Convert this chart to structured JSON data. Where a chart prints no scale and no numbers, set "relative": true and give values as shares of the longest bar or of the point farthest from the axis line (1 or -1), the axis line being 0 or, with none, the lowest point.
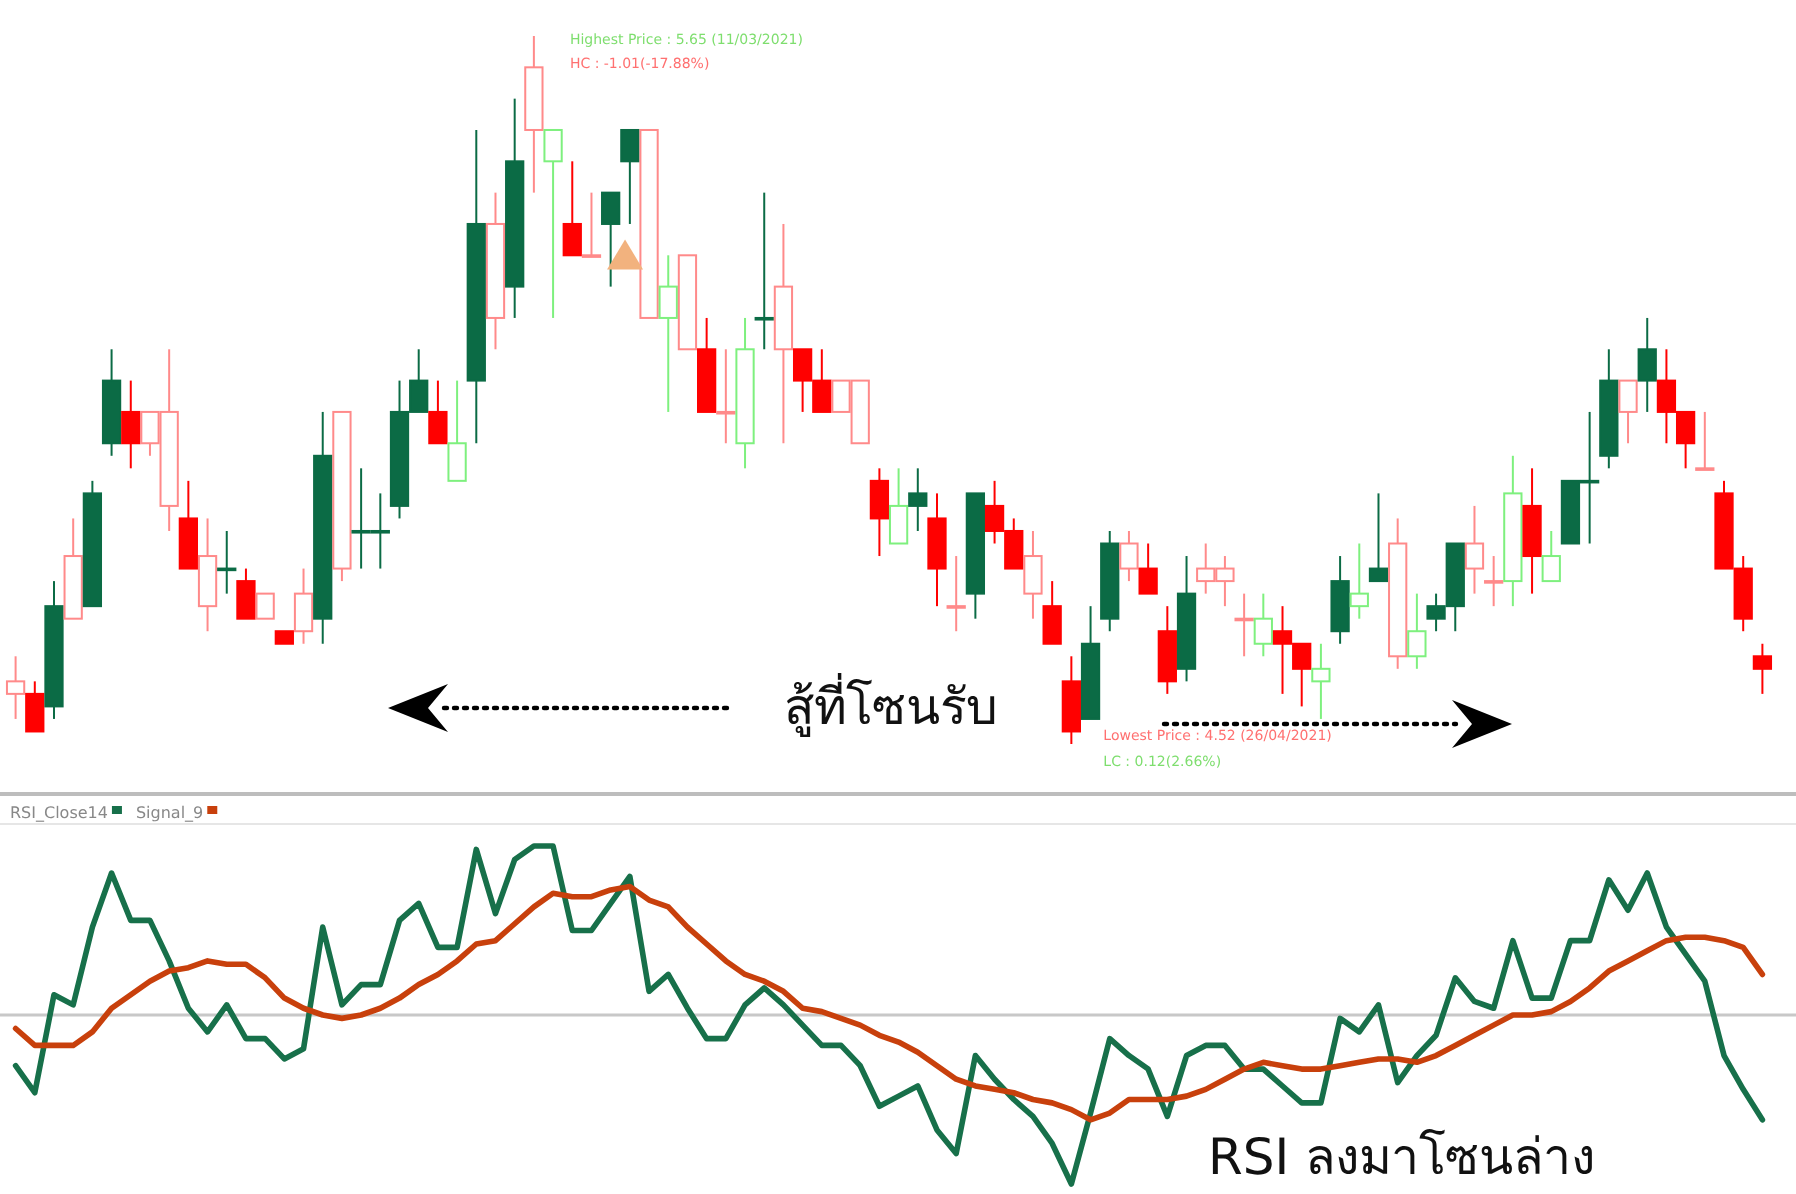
{
  "chart_data": [
    {
      "type": "candlestick",
      "categories": [
        null,
        null,
        null,
        null,
        null,
        null,
        null,
        null,
        null,
        null,
        null,
        null,
        null,
        null,
        null,
        null,
        null,
        null,
        null,
        null,
        null,
        null,
        null,
        null,
        null,
        null,
        null,
        null,
        null,
        null,
        null,
        null,
        null,
        null,
        null,
        null,
        null,
        null,
        null,
        null,
        null,
        null,
        null,
        null,
        null,
        null,
        null,
        null,
        null,
        null,
        null,
        null,
        null,
        null,
        null,
        null,
        null,
        null,
        null,
        null,
        null,
        null,
        null,
        null,
        null,
        null,
        null,
        null,
        null,
        null,
        null,
        null,
        null,
        null,
        null,
        null,
        null,
        null,
        null,
        null,
        null,
        null,
        null,
        null,
        null,
        null,
        null,
        null,
        null,
        null,
        null,
        null
      ],
      "ohlc": [
        [
          4.6,
          4.66,
          4.56,
          4.62
        ],
        [
          4.6,
          4.62,
          4.54,
          4.54
        ],
        [
          4.74,
          4.78,
          4.56,
          4.58
        ],
        [
          4.72,
          4.88,
          4.72,
          4.82
        ],
        [
          4.92,
          4.94,
          4.74,
          4.74
        ],
        [
          5.1,
          5.15,
          4.98,
          5.0
        ],
        [
          5.05,
          5.1,
          4.96,
          5.0
        ],
        [
          5.0,
          5.05,
          4.98,
          5.05
        ],
        [
          4.9,
          5.15,
          4.86,
          5.05
        ],
        [
          4.88,
          4.94,
          4.8,
          4.8
        ],
        [
          4.74,
          4.88,
          4.7,
          4.82
        ],
        [
          4.8,
          4.86,
          4.76,
          4.8
        ],
        [
          4.78,
          4.8,
          4.72,
          4.72
        ],
        [
          4.72,
          4.76,
          4.72,
          4.76
        ],
        [
          4.7,
          4.7,
          4.68,
          4.68
        ],
        [
          4.7,
          4.8,
          4.68,
          4.76
        ],
        [
          4.98,
          5.05,
          4.68,
          4.72
        ],
        [
          4.8,
          5.05,
          4.78,
          5.05
        ],
        [
          4.86,
          4.96,
          4.8,
          4.86
        ],
        [
          4.86,
          4.92,
          4.8,
          4.86
        ],
        [
          5.05,
          5.1,
          4.88,
          4.9
        ],
        [
          5.1,
          5.15,
          5.05,
          5.05
        ],
        [
          5.05,
          5.1,
          5.0,
          5.0
        ],
        [
          4.94,
          5.1,
          4.94,
          5.0
        ],
        [
          5.35,
          5.5,
          5.0,
          5.1
        ],
        [
          5.2,
          5.4,
          5.15,
          5.35
        ],
        [
          5.45,
          5.55,
          5.2,
          5.25
        ],
        [
          5.5,
          5.65,
          5.4,
          5.6
        ],
        [
          5.45,
          5.5,
          5.2,
          5.5
        ],
        [
          5.35,
          5.45,
          5.3,
          5.3
        ],
        [
          5.3,
          5.4,
          5.3,
          5.3
        ],
        [
          5.4,
          5.4,
          5.25,
          5.35
        ],
        [
          5.5,
          5.5,
          5.35,
          5.45
        ],
        [
          5.2,
          5.5,
          5.2,
          5.5
        ],
        [
          5.2,
          5.3,
          5.05,
          5.25
        ],
        [
          5.15,
          5.3,
          5.15,
          5.3
        ],
        [
          5.15,
          5.2,
          5.05,
          5.05
        ],
        [
          5.05,
          5.15,
          5.0,
          5.05
        ],
        [
          5.0,
          5.2,
          4.96,
          5.15
        ],
        [
          5.2,
          5.4,
          5.15,
          5.2
        ],
        [
          5.15,
          5.35,
          5.0,
          5.25
        ],
        [
          5.15,
          5.15,
          5.05,
          5.1
        ],
        [
          5.1,
          5.15,
          5.05,
          5.05
        ],
        [
          5.05,
          5.1,
          5.05,
          5.1
        ],
        [
          5.0,
          5.1,
          5.0,
          5.1
        ],
        [
          4.94,
          4.96,
          4.82,
          4.88
        ],
        [
          4.84,
          4.96,
          4.84,
          4.9
        ],
        [
          4.92,
          4.96,
          4.86,
          4.9
        ],
        [
          4.88,
          4.92,
          4.74,
          4.8
        ],
        [
          4.74,
          4.82,
          4.7,
          4.74
        ],
        [
          4.92,
          4.92,
          4.72,
          4.76
        ],
        [
          4.9,
          4.94,
          4.84,
          4.86
        ],
        [
          4.86,
          4.88,
          4.8,
          4.8
        ],
        [
          4.76,
          4.86,
          4.72,
          4.82
        ],
        [
          4.74,
          4.78,
          4.68,
          4.68
        ],
        [
          4.62,
          4.66,
          4.52,
          4.54
        ],
        [
          4.68,
          4.74,
          4.56,
          4.56
        ],
        [
          4.84,
          4.86,
          4.7,
          4.72
        ],
        [
          4.8,
          4.86,
          4.78,
          4.84
        ],
        [
          4.8,
          4.84,
          4.76,
          4.76
        ],
        [
          4.7,
          4.74,
          4.6,
          4.62
        ],
        [
          4.76,
          4.82,
          4.62,
          4.64
        ],
        [
          4.78,
          4.84,
          4.76,
          4.8
        ],
        [
          4.78,
          4.82,
          4.74,
          4.8
        ],
        [
          4.72,
          4.76,
          4.66,
          4.72
        ],
        [
          4.68,
          4.76,
          4.66,
          4.72
        ],
        [
          4.7,
          4.74,
          4.6,
          4.68
        ],
        [
          4.68,
          4.68,
          4.58,
          4.64
        ],
        [
          4.62,
          4.68,
          4.56,
          4.64
        ],
        [
          4.78,
          4.82,
          4.68,
          4.7
        ],
        [
          4.74,
          4.84,
          4.72,
          4.76
        ],
        [
          4.8,
          4.92,
          4.78,
          4.78
        ],
        [
          4.66,
          4.88,
          4.64,
          4.84
        ],
        [
          4.66,
          4.76,
          4.64,
          4.7
        ],
        [
          4.74,
          4.76,
          4.7,
          4.72
        ],
        [
          4.84,
          4.84,
          4.7,
          4.74
        ],
        [
          4.8,
          4.9,
          4.76,
          4.84
        ],
        [
          4.78,
          4.82,
          4.74,
          4.78
        ],
        [
          4.78,
          4.98,
          4.74,
          4.92
        ],
        [
          4.9,
          4.96,
          4.76,
          4.82
        ],
        [
          4.78,
          4.86,
          4.78,
          4.82
        ],
        [
          4.94,
          4.94,
          4.84,
          4.84
        ],
        [
          4.94,
          5.05,
          4.84,
          4.94
        ],
        [
          5.1,
          5.15,
          4.96,
          4.98
        ],
        [
          5.05,
          5.1,
          5.0,
          5.1
        ],
        [
          5.15,
          5.2,
          5.05,
          5.1
        ],
        [
          5.1,
          5.15,
          5.0,
          5.05
        ],
        [
          5.05,
          5.05,
          4.96,
          5.0
        ],
        [
          4.96,
          5.05,
          4.96,
          4.96
        ],
        [
          4.92,
          4.94,
          4.8,
          4.8
        ],
        [
          4.8,
          4.82,
          4.7,
          4.72
        ],
        [
          4.66,
          4.68,
          4.6,
          4.64
        ]
      ],
      "colors": [
        "#ff8a8a",
        "#ff0000",
        "#0b6b45",
        "#ff8a8a",
        "#0b6b45",
        "#0b6b45",
        "#ff0000",
        "#ff8a8a",
        "#ff8a8a",
        "#ff0000",
        "#ff8a8a",
        "#0b6b45",
        "#ff0000",
        "#ff8a8a",
        "#ff0000",
        "#ff8a8a",
        "#0b6b45",
        "#ff8a8a",
        "#0b6b45",
        "#0b6b45",
        "#0b6b45",
        "#0b6b45",
        "#ff0000",
        "#7ef07e",
        "#0b6b45",
        "#ff8a8a",
        "#0b6b45",
        "#ff8a8a",
        "#7ef07e",
        "#ff0000",
        "#ff8a8a",
        "#0b6b45",
        "#0b6b45",
        "#ff8a8a",
        "#7ef07e",
        "#ff8a8a",
        "#ff0000",
        "#ff8a8a",
        "#7ef07e",
        "#0b6b45",
        "#ff8a8a",
        "#ff0000",
        "#ff0000",
        "#ff8a8a",
        "#ff8a8a",
        "#ff0000",
        "#7ef07e",
        "#0b6b45",
        "#ff0000",
        "#ff8a8a",
        "#0b6b45",
        "#ff0000",
        "#ff0000",
        "#ff8a8a",
        "#ff0000",
        "#ff0000",
        "#0b6b45",
        "#0b6b45",
        "#ff8a8a",
        "#ff0000",
        "#ff0000",
        "#0b6b45",
        "#ff8a8a",
        "#ff8a8a",
        "#ff8a8a",
        "#7ef07e",
        "#ff0000",
        "#ff0000",
        "#7ef07e",
        "#0b6b45",
        "#7ef07e",
        "#0b6b45",
        "#ff8a8a",
        "#7ef07e",
        "#0b6b45",
        "#0b6b45",
        "#ff8a8a",
        "#ff8a8a",
        "#7ef07e",
        "#ff0000",
        "#7ef07e",
        "#0b6b45",
        "#0b6b45",
        "#0b6b45",
        "#ff8a8a",
        "#0b6b45",
        "#ff0000",
        "#ff0000",
        "#ff8a8a",
        "#ff0000",
        "#ff0000",
        "#ff0000"
      ],
      "annotations": [
        "Highest Price : 5.65 (11/03/2021)",
        "HC : -1.01(-17.88%)",
        "Lowest Price : 4.52 (26/04/2021)",
        "LC : 0.12(2.66%)",
        "สู้ที่โซนรับ"
      ]
    },
    {
      "type": "line",
      "relative": true,
      "legend": "top left",
      "categories": [
        null,
        null,
        null,
        null,
        null,
        null,
        null,
        null,
        null,
        null,
        null,
        null,
        null,
        null,
        null,
        null,
        null,
        null,
        null,
        null,
        null,
        null,
        null,
        null,
        null,
        null,
        null,
        null,
        null,
        null,
        null,
        null,
        null,
        null,
        null,
        null,
        null,
        null,
        null,
        null,
        null,
        null,
        null,
        null,
        null,
        null,
        null,
        null,
        null,
        null,
        null,
        null,
        null,
        null,
        null,
        null,
        null,
        null,
        null,
        null,
        null,
        null,
        null,
        null,
        null,
        null,
        null,
        null,
        null,
        null,
        null,
        null,
        null,
        null,
        null,
        null,
        null,
        null,
        null,
        null,
        null,
        null,
        null,
        null,
        null,
        null,
        null,
        null,
        null,
        null,
        null,
        null
      ],
      "series": [
        {
          "name": "RSI_Close14",
          "color": "#17704a",
          "values": [
            0.35,
            0.27,
            0.56,
            0.53,
            0.76,
            0.92,
            0.78,
            0.78,
            0.66,
            0.52,
            0.45,
            0.53,
            0.43,
            0.43,
            0.37,
            0.4,
            0.76,
            0.53,
            0.59,
            0.59,
            0.78,
            0.83,
            0.7,
            0.7,
            0.99,
            0.8,
            0.96,
            1.0,
            1.0,
            0.75,
            0.75,
            0.83,
            0.91,
            0.57,
            0.62,
            0.52,
            0.43,
            0.43,
            0.53,
            0.58,
            0.53,
            0.47,
            0.41,
            0.41,
            0.35,
            0.23,
            0.26,
            0.29,
            0.16,
            0.09,
            0.38,
            0.31,
            0.25,
            0.2,
            0.12,
            0.0,
            0.21,
            0.43,
            0.38,
            0.34,
            0.2,
            0.38,
            0.41,
            0.41,
            0.34,
            0.34,
            0.29,
            0.24,
            0.24,
            0.49,
            0.45,
            0.53,
            0.3,
            0.38,
            0.44,
            0.61,
            0.54,
            0.52,
            0.72,
            0.55,
            0.55,
            0.72,
            0.72,
            0.9,
            0.81,
            0.92,
            0.76,
            0.68,
            0.6,
            0.38,
            0.28,
            0.19
          ]
        },
        {
          "name": "Signal_9",
          "color": "#c8400c",
          "values": [
            0.46,
            0.41,
            0.41,
            0.41,
            0.45,
            0.52,
            0.56,
            0.6,
            0.63,
            0.64,
            0.66,
            0.65,
            0.65,
            0.61,
            0.55,
            0.52,
            0.5,
            0.49,
            0.5,
            0.52,
            0.55,
            0.59,
            0.62,
            0.66,
            0.71,
            0.72,
            0.77,
            0.82,
            0.86,
            0.85,
            0.85,
            0.87,
            0.88,
            0.84,
            0.82,
            0.76,
            0.71,
            0.66,
            0.62,
            0.6,
            0.57,
            0.52,
            0.51,
            0.49,
            0.47,
            0.44,
            0.42,
            0.39,
            0.35,
            0.31,
            0.29,
            0.28,
            0.27,
            0.25,
            0.24,
            0.22,
            0.19,
            0.21,
            0.25,
            0.25,
            0.25,
            0.26,
            0.28,
            0.31,
            0.34,
            0.36,
            0.35,
            0.34,
            0.34,
            0.35,
            0.36,
            0.37,
            0.37,
            0.36,
            0.38,
            0.41,
            0.44,
            0.47,
            0.5,
            0.5,
            0.51,
            0.54,
            0.58,
            0.63,
            0.66,
            0.69,
            0.72,
            0.73,
            0.73,
            0.72,
            0.7,
            0.62
          ]
        }
      ],
      "ref_lines": [
        {
          "axis": "y",
          "value": 0.5,
          "color": "#c8c8c8"
        }
      ],
      "annotations": [
        "RSI ลงมาโซนล่าง"
      ]
    }
  ]
}
